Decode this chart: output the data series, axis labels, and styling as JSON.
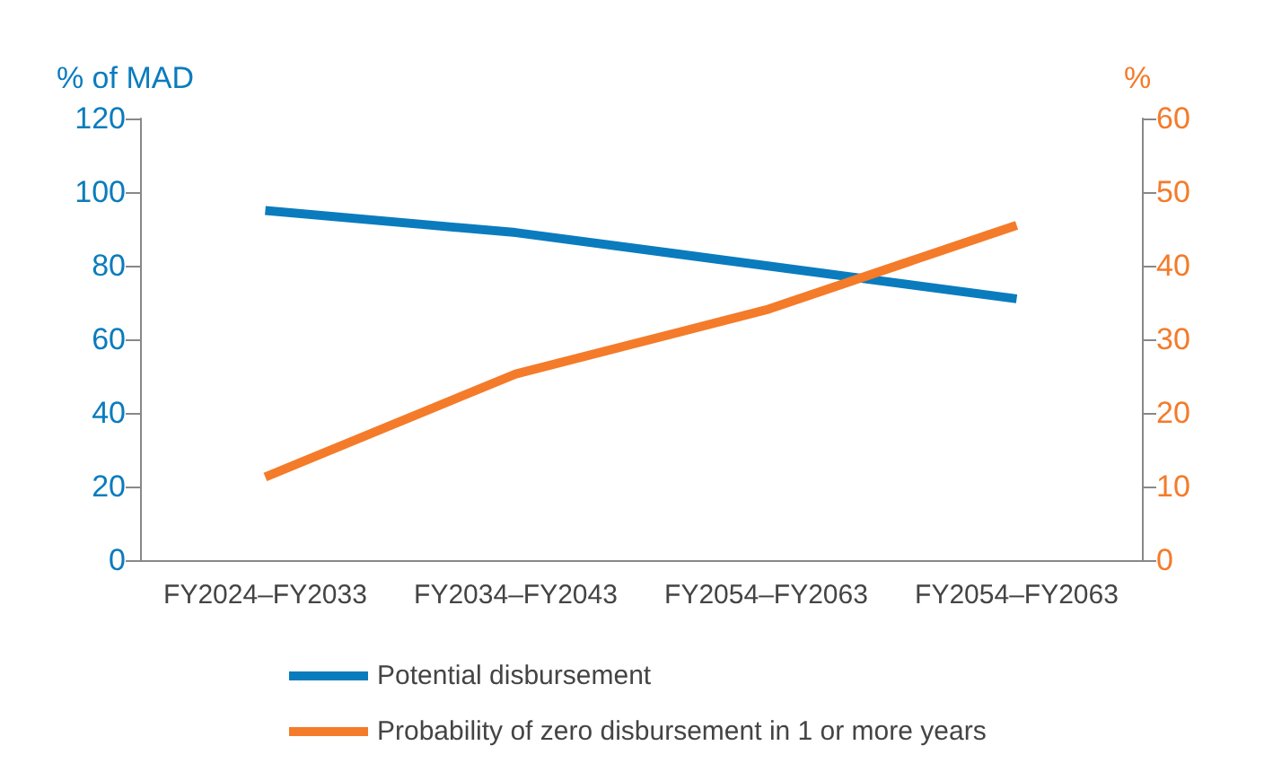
{
  "chart_data": {
    "type": "line",
    "ylabel": "% of MAD",
    "y2label": "%",
    "categories": [
      "FY2024–FY2033",
      "FY2034–FY2043",
      "FY2054–FY2063",
      "FY2054–FY2063"
    ],
    "series": [
      {
        "name": "Potential disbursement",
        "color": "#0a7cbd",
        "values": [
          95,
          89,
          80,
          71
        ]
      },
      {
        "name": "Probability of zero disbursement in 1 or more years",
        "color": "#f47b2a",
        "values": [
          11.3,
          25.3,
          34,
          45.5
        ],
        "axis": "y2"
      }
    ],
    "ylim": [
      0,
      120
    ],
    "yticks": [
      0,
      20,
      40,
      60,
      80,
      100,
      120
    ],
    "y2lim": [
      0,
      60
    ],
    "y2ticks": [
      0,
      10,
      20,
      30,
      40,
      50,
      60
    ],
    "grid": false,
    "legend": "bottom",
    "marker": "none",
    "line_style": "solid"
  }
}
